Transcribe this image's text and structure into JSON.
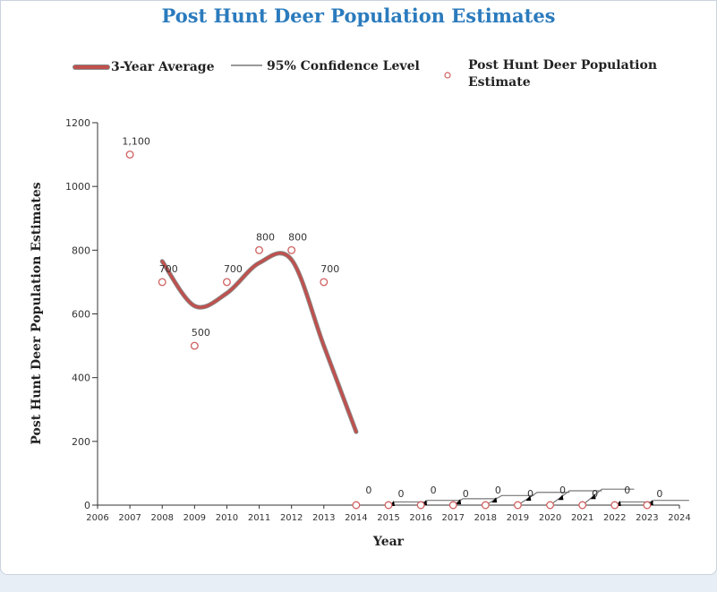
{
  "title": "Post Hunt Deer Population Estimates",
  "colors": {
    "title": "#2b7bbd",
    "avg_line": "#c0504d",
    "avg_line_edge": "#8a8a8a",
    "ci_line": "#777777",
    "marker_stroke": "#d06060",
    "axis": "#333333"
  },
  "legend": {
    "avg_label": "3-Year Average",
    "ci_label": "95% Confidence Level",
    "estimate_label_line1": "Post Hunt Deer Population",
    "estimate_label_line2": "Estimate"
  },
  "chart_data": {
    "type": "line",
    "title": "Post Hunt Deer Population Estimates",
    "xlabel": "Year",
    "ylabel": "Post Hunt Deer Population Estimates",
    "xlim": [
      2006,
      2024
    ],
    "ylim": [
      0,
      1200
    ],
    "x_ticks": [
      2006,
      2007,
      2008,
      2009,
      2010,
      2011,
      2012,
      2013,
      2014,
      2015,
      2016,
      2017,
      2018,
      2019,
      2020,
      2021,
      2022,
      2023,
      2024
    ],
    "y_ticks": [
      0,
      200,
      400,
      600,
      800,
      1000,
      1200
    ],
    "grid": false,
    "legend_position": "top",
    "estimates": {
      "name": "Post Hunt Deer Population Estimate",
      "points": [
        {
          "x": 2007,
          "y": 1100,
          "label": "1,100"
        },
        {
          "x": 2008,
          "y": 700,
          "label": "700"
        },
        {
          "x": 2009,
          "y": 500,
          "label": "500"
        },
        {
          "x": 2010,
          "y": 700,
          "label": "700"
        },
        {
          "x": 2011,
          "y": 800,
          "label": "800"
        },
        {
          "x": 2012,
          "y": 800,
          "label": "800"
        },
        {
          "x": 2013,
          "y": 700,
          "label": "700"
        },
        {
          "x": 2014,
          "y": 0,
          "label": "0"
        },
        {
          "x": 2015,
          "y": 0,
          "label": "0"
        },
        {
          "x": 2016,
          "y": 0,
          "label": "0"
        },
        {
          "x": 2017,
          "y": 0,
          "label": "0"
        },
        {
          "x": 2018,
          "y": 0,
          "label": "0"
        },
        {
          "x": 2019,
          "y": 0,
          "label": "0"
        },
        {
          "x": 2020,
          "y": 0,
          "label": "0"
        },
        {
          "x": 2021,
          "y": 0,
          "label": "0"
        },
        {
          "x": 2022,
          "y": 0,
          "label": "0"
        },
        {
          "x": 2023,
          "y": 0,
          "label": "0"
        }
      ]
    },
    "three_year_average": {
      "name": "3-Year Average",
      "points": [
        {
          "x": 2008,
          "y": 765
        },
        {
          "x": 2009,
          "y": 625
        },
        {
          "x": 2010,
          "y": 665
        },
        {
          "x": 2011,
          "y": 760
        },
        {
          "x": 2012,
          "y": 770
        },
        {
          "x": 2013,
          "y": 500
        },
        {
          "x": 2014,
          "y": 230
        }
      ]
    },
    "confidence_segments": {
      "name": "95% Confidence Level",
      "segments": [
        [
          {
            "x": 2015,
            "y": 0
          },
          {
            "x": 2015.2,
            "y": 10
          },
          {
            "x": 2016.2,
            "y": 10
          }
        ],
        [
          {
            "x": 2016,
            "y": 0
          },
          {
            "x": 2016.2,
            "y": 15
          },
          {
            "x": 2017.2,
            "y": 15
          }
        ],
        [
          {
            "x": 2017,
            "y": 0
          },
          {
            "x": 2017.3,
            "y": 20
          },
          {
            "x": 2018.3,
            "y": 20
          }
        ],
        [
          {
            "x": 2018,
            "y": 0
          },
          {
            "x": 2018.5,
            "y": 30
          },
          {
            "x": 2019.5,
            "y": 30
          }
        ],
        [
          {
            "x": 2019,
            "y": 0
          },
          {
            "x": 2019.6,
            "y": 40
          },
          {
            "x": 2020.6,
            "y": 40
          }
        ],
        [
          {
            "x": 2020,
            "y": 0
          },
          {
            "x": 2020.6,
            "y": 45
          },
          {
            "x": 2021.6,
            "y": 45
          }
        ],
        [
          {
            "x": 2021,
            "y": 0
          },
          {
            "x": 2021.6,
            "y": 50
          },
          {
            "x": 2022.6,
            "y": 50
          }
        ],
        [
          {
            "x": 2022,
            "y": 0
          },
          {
            "x": 2022.2,
            "y": 10
          },
          {
            "x": 2023.2,
            "y": 10
          }
        ],
        [
          {
            "x": 2023,
            "y": 0
          },
          {
            "x": 2023.2,
            "y": 15
          },
          {
            "x": 2024.3,
            "y": 15
          }
        ]
      ]
    }
  }
}
